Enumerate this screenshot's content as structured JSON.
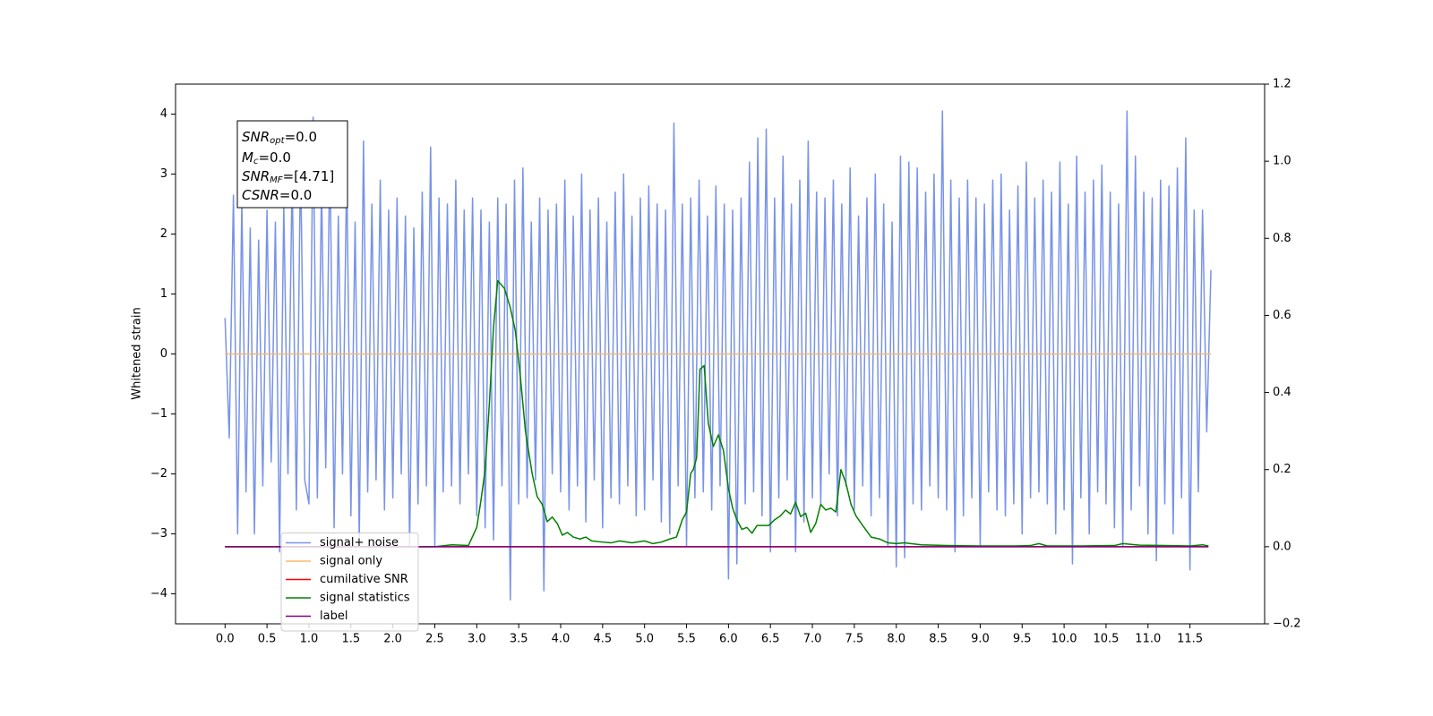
{
  "chart_data": {
    "type": "line",
    "ylabel": "Whitened strain",
    "xlim": [
      -0.59,
      12.39
    ],
    "ylim": [
      -4.5,
      4.5
    ],
    "y2lim": [
      -0.2,
      1.2
    ],
    "grid": false,
    "legend_loc": "lower left",
    "xticks": [
      {
        "value": 0,
        "label": "0.0"
      },
      0.5,
      {
        "value": 1,
        "label": "1.0"
      },
      1.5,
      {
        "value": 2,
        "label": "2.0"
      },
      2.5,
      {
        "value": 3,
        "label": "3.0"
      },
      3.5,
      {
        "value": 4,
        "label": "4.0"
      },
      4.5,
      {
        "value": 5,
        "label": "5.0"
      },
      5.5,
      {
        "value": 6,
        "label": "6.0"
      },
      6.5,
      {
        "value": 7,
        "label": "7.0"
      },
      7.5,
      {
        "value": 8,
        "label": "8.0"
      },
      8.5,
      {
        "value": 9,
        "label": "9.0"
      },
      9.5,
      {
        "value": 10,
        "label": "10.0"
      },
      10.5,
      {
        "value": 11,
        "label": "11.0"
      },
      11.5
    ],
    "yticks": [
      {
        "value": -4,
        "label": "−4"
      },
      {
        "value": -3,
        "label": "−3"
      },
      {
        "value": -2,
        "label": "−2"
      },
      {
        "value": -1,
        "label": "−1"
      },
      0,
      1,
      2,
      3,
      4
    ],
    "y2ticks": [
      {
        "value": -0.2,
        "label": "−0.2"
      },
      {
        "value": 0,
        "label": "0.0"
      },
      0.2,
      0.4,
      0.6,
      0.8,
      {
        "value": 1,
        "label": "1.0"
      },
      1.2
    ],
    "annotation": [
      {
        "base": "SNR",
        "sub": "opt",
        "text": "=0.0"
      },
      {
        "base": "M",
        "sub": "c",
        "text": "=0.0"
      },
      {
        "base": "SNR",
        "sub": "MF",
        "text": "=[4.71]"
      },
      {
        "base": "CSNR",
        "text": "=0.0"
      }
    ],
    "series": [
      {
        "name": "signal+ noise",
        "color": "#7893e8",
        "x": [
          0,
          0.05,
          0.1,
          0.15,
          0.2,
          0.25,
          0.3,
          0.35,
          0.4,
          0.45,
          0.5,
          0.55,
          0.6,
          0.65,
          0.7,
          0.75,
          0.8,
          0.85,
          0.9,
          0.95,
          1,
          1.05,
          1.1,
          1.15,
          1.2,
          1.25,
          1.3,
          1.35,
          1.4,
          1.45,
          1.5,
          1.55,
          1.6,
          1.65,
          1.7,
          1.75,
          1.8,
          1.85,
          1.9,
          1.95,
          2,
          2.05,
          2.1,
          2.15,
          2.2,
          2.25,
          2.3,
          2.35,
          2.4,
          2.45,
          2.5,
          2.55,
          2.6,
          2.65,
          2.7,
          2.75,
          2.8,
          2.85,
          2.9,
          2.95,
          3,
          3.05,
          3.1,
          3.15,
          3.2,
          3.25,
          3.3,
          3.35,
          3.4,
          3.45,
          3.5,
          3.55,
          3.6,
          3.65,
          3.7,
          3.75,
          3.8,
          3.85,
          3.9,
          3.95,
          4,
          4.05,
          4.1,
          4.15,
          4.2,
          4.25,
          4.3,
          4.35,
          4.4,
          4.45,
          4.5,
          4.55,
          4.6,
          4.65,
          4.7,
          4.75,
          4.8,
          4.85,
          4.9,
          4.95,
          5,
          5.05,
          5.1,
          5.15,
          5.2,
          5.25,
          5.3,
          5.35,
          5.4,
          5.45,
          5.5,
          5.55,
          5.6,
          5.65,
          5.7,
          5.75,
          5.8,
          5.85,
          5.9,
          5.95,
          6,
          6.05,
          6.1,
          6.15,
          6.2,
          6.25,
          6.3,
          6.35,
          6.4,
          6.45,
          6.5,
          6.55,
          6.6,
          6.65,
          6.7,
          6.75,
          6.8,
          6.85,
          6.9,
          6.95,
          7,
          7.05,
          7.1,
          7.15,
          7.2,
          7.25,
          7.3,
          7.35,
          7.4,
          7.45,
          7.5,
          7.55,
          7.6,
          7.65,
          7.7,
          7.75,
          7.8,
          7.85,
          7.9,
          7.95,
          8,
          8.05,
          8.1,
          8.15,
          8.2,
          8.25,
          8.3,
          8.35,
          8.4,
          8.45,
          8.5,
          8.55,
          8.6,
          8.65,
          8.7,
          8.75,
          8.8,
          8.85,
          8.9,
          8.95,
          9,
          9.05,
          9.1,
          9.15,
          9.2,
          9.25,
          9.3,
          9.35,
          9.4,
          9.45,
          9.5,
          9.55,
          9.6,
          9.65,
          9.7,
          9.75,
          9.8,
          9.85,
          9.9,
          9.95,
          10,
          10.05,
          10.1,
          10.15,
          10.2,
          10.25,
          10.3,
          10.35,
          10.4,
          10.45,
          10.5,
          10.55,
          10.6,
          10.65,
          10.7,
          10.75,
          10.8,
          10.85,
          10.9,
          10.95,
          11,
          11.05,
          11.1,
          11.15,
          11.2,
          11.25,
          11.3,
          11.35,
          11.4,
          11.45,
          11.5,
          11.55,
          11.6,
          11.65,
          11.7,
          11.75
        ],
        "values": [
          0.6,
          -1.4,
          2.65,
          -3.0,
          2.55,
          -2.3,
          2.1,
          -3.0,
          1.9,
          -2.2,
          2.4,
          -1.8,
          2.2,
          -3.3,
          2.5,
          -2.0,
          3.05,
          -2.6,
          3.3,
          -2.1,
          -2.5,
          3.95,
          -2.4,
          2.8,
          -1.9,
          3.5,
          -2.9,
          2.3,
          -2.0,
          3.1,
          -2.7,
          2.2,
          -3.1,
          3.55,
          -2.3,
          2.5,
          -2.1,
          2.9,
          -2.6,
          2.4,
          -2.4,
          2.6,
          -2.0,
          2.3,
          -3.2,
          2.1,
          -2.5,
          2.7,
          -2.2,
          3.45,
          -3.2,
          2.6,
          -2.3,
          2.5,
          -2.2,
          2.9,
          -2.5,
          2.4,
          -2.0,
          2.6,
          -2.7,
          2.4,
          -2.9,
          2.2,
          -3.1,
          2.6,
          -2.2,
          2.5,
          -4.1,
          2.9,
          -2.5,
          3.1,
          -2.4,
          2.2,
          -2.1,
          2.6,
          -3.95,
          2.4,
          -2.0,
          2.5,
          -2.3,
          2.9,
          -2.6,
          2.3,
          -2.2,
          3.0,
          -2.8,
          2.4,
          -2.1,
          2.6,
          -2.9,
          2.2,
          -2.4,
          2.7,
          -2.5,
          3.0,
          -2.2,
          2.3,
          -2.7,
          2.6,
          -2.6,
          2.8,
          -2.1,
          2.5,
          -2.8,
          2.4,
          -3.0,
          3.85,
          -2.2,
          2.5,
          -3.2,
          2.6,
          -2.4,
          2.9,
          -2.3,
          2.3,
          -2.6,
          2.8,
          -2.2,
          2.5,
          -3.75,
          2.4,
          -3.5,
          2.6,
          -2.5,
          3.2,
          -2.3,
          3.6,
          -2.7,
          3.75,
          -3.3,
          2.6,
          -2.4,
          3.3,
          -2.1,
          2.5,
          -3.3,
          2.9,
          -2.8,
          3.55,
          -2.4,
          2.7,
          -2.5,
          2.6,
          -2.0,
          2.9,
          -2.7,
          2.5,
          -2.2,
          3.1,
          -2.6,
          2.3,
          -2.2,
          2.6,
          -2.7,
          3.0,
          -2.4,
          2.5,
          -3.2,
          2.2,
          -3.55,
          3.3,
          -3.4,
          3.2,
          -2.5,
          3.1,
          -2.6,
          2.7,
          -2.2,
          3.0,
          -2.4,
          4.05,
          -2.6,
          2.9,
          -3.3,
          2.6,
          -2.7,
          2.9,
          -2.4,
          2.6,
          -3.2,
          2.5,
          -2.3,
          2.9,
          -2.6,
          3.0,
          -2.7,
          2.4,
          -2.5,
          2.8,
          -3.0,
          3.2,
          -2.4,
          2.6,
          -2.3,
          2.9,
          -2.5,
          2.7,
          -3.0,
          3.2,
          -2.6,
          2.5,
          -3.5,
          3.3,
          -2.4,
          2.7,
          -3.0,
          2.9,
          -2.3,
          3.15,
          -2.5,
          2.7,
          -2.9,
          2.5,
          -3.2,
          4.05,
          -2.6,
          3.3,
          -2.2,
          2.7,
          -3.0,
          2.6,
          -3.45,
          2.9,
          -2.5,
          2.8,
          -3.0,
          3.1,
          -2.4,
          3.6,
          -3.6,
          2.4,
          -2.3,
          2.4,
          -1.3,
          1.4
        ]
      },
      {
        "name": "signal only",
        "color": "#f5b96e",
        "x": [
          0,
          11.75
        ],
        "values": [
          0,
          0
        ]
      },
      {
        "name": "cumilative SNR",
        "color": "#ff0000",
        "axis": "y2",
        "x": [
          0,
          11.72
        ],
        "values": [
          0,
          0
        ]
      },
      {
        "name": "signal statistics",
        "color": "#008000",
        "axis": "y2",
        "x": [
          0,
          0.5,
          1,
          1.5,
          2,
          2.5,
          2.7,
          2.9,
          3,
          3.05,
          3.1,
          3.15,
          3.2,
          3.25,
          3.33,
          3.4,
          3.46,
          3.52,
          3.58,
          3.66,
          3.72,
          3.78,
          3.84,
          3.9,
          3.96,
          4.02,
          4.08,
          4.15,
          4.23,
          4.3,
          4.37,
          4.5,
          4.6,
          4.7,
          4.85,
          5,
          5.1,
          5.2,
          5.3,
          5.38,
          5.45,
          5.5,
          5.55,
          5.58,
          5.62,
          5.66,
          5.71,
          5.76,
          5.82,
          5.88,
          5.94,
          6,
          6.05,
          6.1,
          6.16,
          6.22,
          6.28,
          6.34,
          6.4,
          6.48,
          6.55,
          6.62,
          6.68,
          6.74,
          6.8,
          6.86,
          6.92,
          6.98,
          7.04,
          7.1,
          7.16,
          7.22,
          7.28,
          7.34,
          7.4,
          7.46,
          7.52,
          7.6,
          7.7,
          7.8,
          7.9,
          8,
          8.1,
          8.3,
          8.6,
          9,
          9.4,
          9.6,
          9.7,
          9.8,
          10.2,
          10.6,
          10.7,
          10.9,
          11.2,
          11.5,
          11.65,
          11.72
        ],
        "values": [
          0,
          0,
          0,
          0,
          0,
          0,
          0.005,
          0.003,
          0.05,
          0.12,
          0.2,
          0.37,
          0.57,
          0.69,
          0.67,
          0.62,
          0.56,
          0.44,
          0.3,
          0.19,
          0.13,
          0.11,
          0.065,
          0.077,
          0.06,
          0.03,
          0.037,
          0.025,
          0.02,
          0.025,
          0.015,
          0.012,
          0.01,
          0.015,
          0.01,
          0.015,
          0.008,
          0.012,
          0.02,
          0.025,
          0.07,
          0.09,
          0.19,
          0.2,
          0.23,
          0.46,
          0.47,
          0.32,
          0.26,
          0.29,
          0.25,
          0.15,
          0.1,
          0.07,
          0.045,
          0.05,
          0.035,
          0.055,
          0.055,
          0.055,
          0.07,
          0.08,
          0.095,
          0.085,
          0.115,
          0.078,
          0.087,
          0.037,
          0.06,
          0.11,
          0.095,
          0.1,
          0.09,
          0.2,
          0.165,
          0.11,
          0.08,
          0.055,
          0.025,
          0.02,
          0.01,
          0.008,
          0.01,
          0.005,
          0.003,
          0.002,
          0.002,
          0.003,
          0.008,
          0.002,
          0.002,
          0.003,
          0.008,
          0.004,
          0.003,
          0.002,
          0.005,
          0.002
        ]
      },
      {
        "name": "label",
        "color": "#800080",
        "axis": "y2",
        "x": [
          0,
          11.72
        ],
        "values": [
          0,
          0
        ]
      }
    ]
  }
}
